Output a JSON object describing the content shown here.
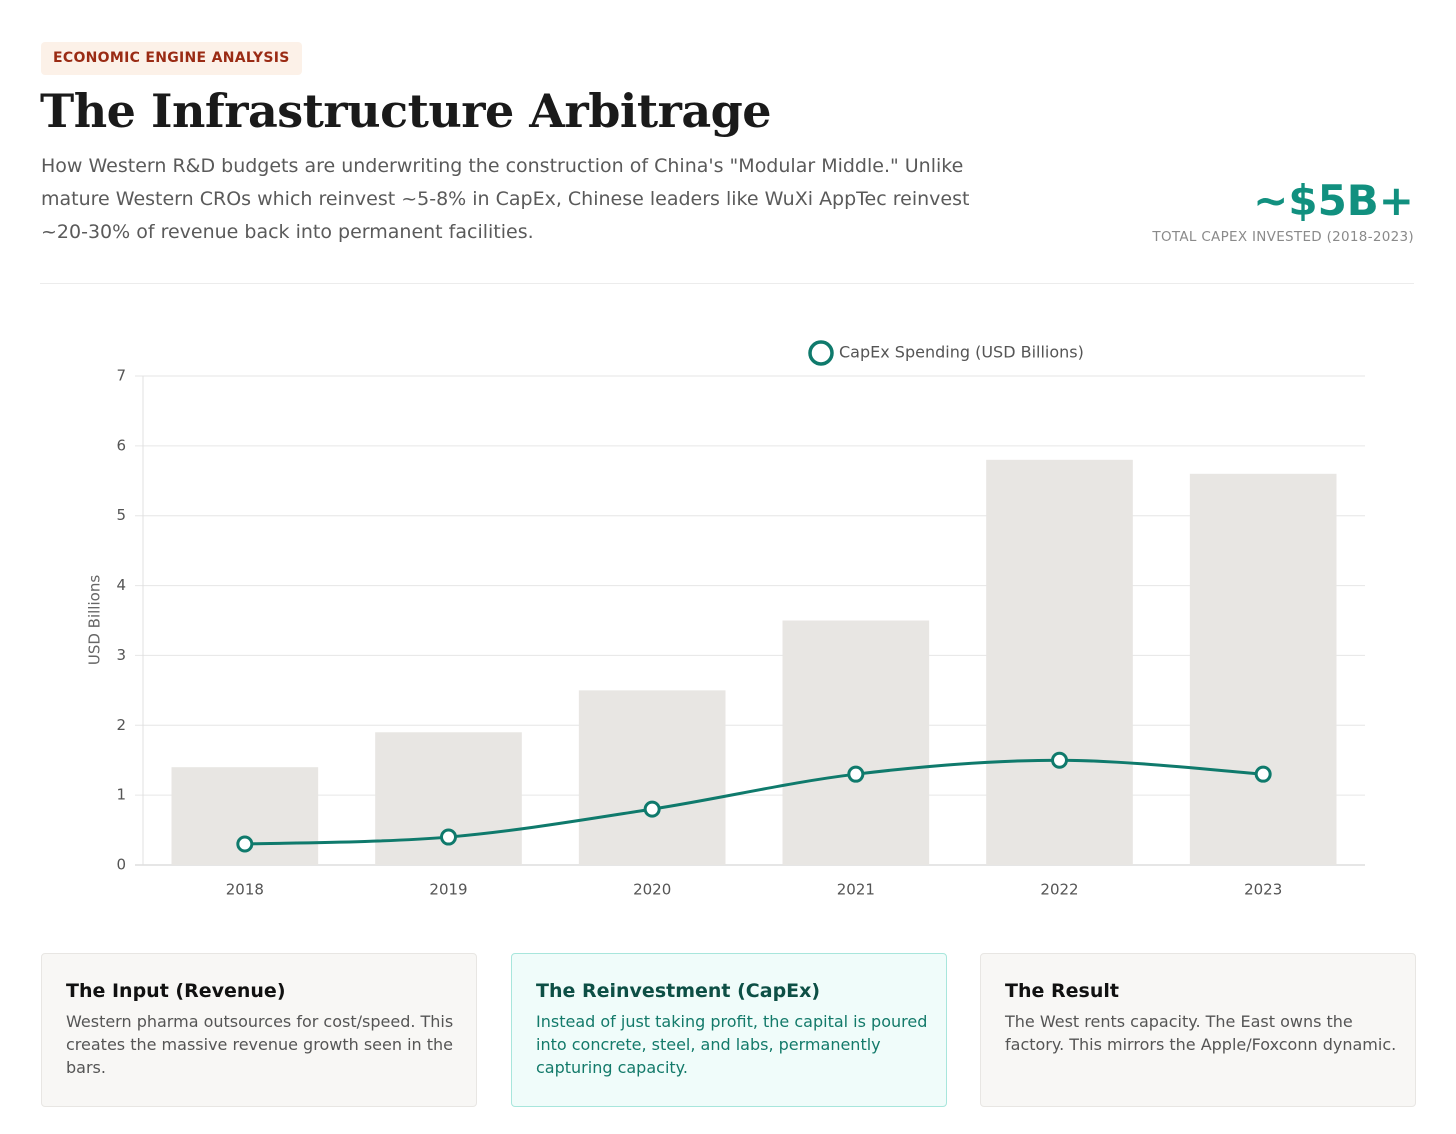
{
  "header": {
    "tag": "ECONOMIC ENGINE ANALYSIS",
    "title": "The Infrastructure Arbitrage",
    "subtitle": "How Western R&D budgets are underwriting the construction of China's \"Modular Middle.\" Unlike mature Western CROs which reinvest ~5-8% in CapEx, Chinese leaders like WuXi AppTec reinvest ~20-30% of revenue back into permanent facilities.",
    "stat": "~$5B+",
    "stat_caption": "TOTAL CAPEX INVESTED (2018-2023)"
  },
  "chart_data": {
    "type": "bar",
    "y_label": "USD Billions",
    "categories": [
      "2018",
      "2019",
      "2020",
      "2021",
      "2022",
      "2023"
    ],
    "series": [
      {
        "type": "bar",
        "color": "#e8e6e3",
        "values": [
          1.4,
          1.9,
          2.5,
          3.5,
          5.8,
          5.6
        ]
      },
      {
        "type": "line",
        "name": "CapEx Spending (USD Billions)",
        "color": "#0f7a6c",
        "values": [
          0.3,
          0.4,
          0.8,
          1.3,
          1.5,
          1.3
        ]
      }
    ],
    "ylim": [
      0,
      7
    ],
    "yticks": [
      0,
      1,
      2,
      3,
      4,
      5,
      6,
      7
    ],
    "grid": true,
    "legend": "top"
  },
  "cards": [
    {
      "title": "The Input (Revenue)",
      "text": "Western pharma outsources for cost/speed. This creates the massive revenue growth seen in the bars."
    },
    {
      "title": "The Reinvestment (CapEx)",
      "text": "Instead of just taking profit, the capital is poured into concrete, steel, and labs, permanently capturing capacity."
    },
    {
      "title": "The Result",
      "text": "The West rents capacity. The East owns the factory. This mirrors the Apple/Foxconn dynamic."
    }
  ]
}
